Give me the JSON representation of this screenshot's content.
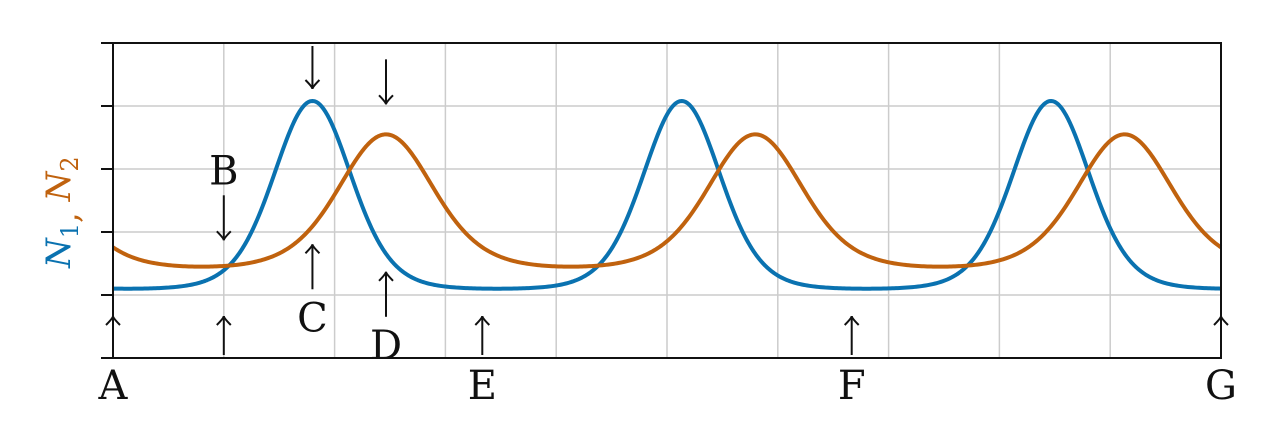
{
  "chart_data": {
    "type": "line",
    "title": "",
    "xlabel": "",
    "ylabel_parts": [
      "N",
      "1",
      ",",
      "N",
      "2"
    ],
    "xlim": [
      0,
      1
    ],
    "ylim": [
      0,
      5
    ],
    "grid": true,
    "x_tick_labels": [
      "A",
      "E",
      "F",
      "G"
    ],
    "x_tick_positions": [
      0,
      0.3333,
      0.6667,
      1
    ],
    "colors": {
      "n1": "#0a72b0",
      "n2": "#c0620e"
    },
    "series": [
      {
        "key": "n1",
        "period": 0.3333,
        "phase": 0.18,
        "min": 1.1,
        "max": 4.08,
        "sharpness": 2.4
      },
      {
        "key": "n2",
        "period": 0.3333,
        "phase": 0.2464,
        "min": 1.45,
        "max": 3.55,
        "sharpness": 1.6
      }
    ],
    "annotations": [
      {
        "label": "A",
        "x": 0.0,
        "arrow": "up",
        "anchor": "bottom"
      },
      {
        "label": "B",
        "x": 0.1,
        "arrow": "down",
        "anchor": "n1"
      },
      {
        "label": "C",
        "x": 0.18,
        "arrow": "up",
        "anchor": "n2"
      },
      {
        "label": "D",
        "x": 0.2464,
        "arrow": "up",
        "anchor": "n1"
      },
      {
        "label": "",
        "x": 0.18,
        "arrow": "down",
        "anchor": "top"
      },
      {
        "label": "",
        "x": 0.2464,
        "arrow": "down",
        "anchor": "n2"
      },
      {
        "label": "",
        "x": 0.1,
        "arrow": "up",
        "anchor": "bottom"
      },
      {
        "label": "E",
        "x": 0.3333,
        "arrow": "up",
        "anchor": "bottom"
      },
      {
        "label": "F",
        "x": 0.6667,
        "arrow": "up",
        "anchor": "bottom"
      },
      {
        "label": "G",
        "x": 1.0,
        "arrow": "up",
        "anchor": "bottom"
      }
    ]
  }
}
